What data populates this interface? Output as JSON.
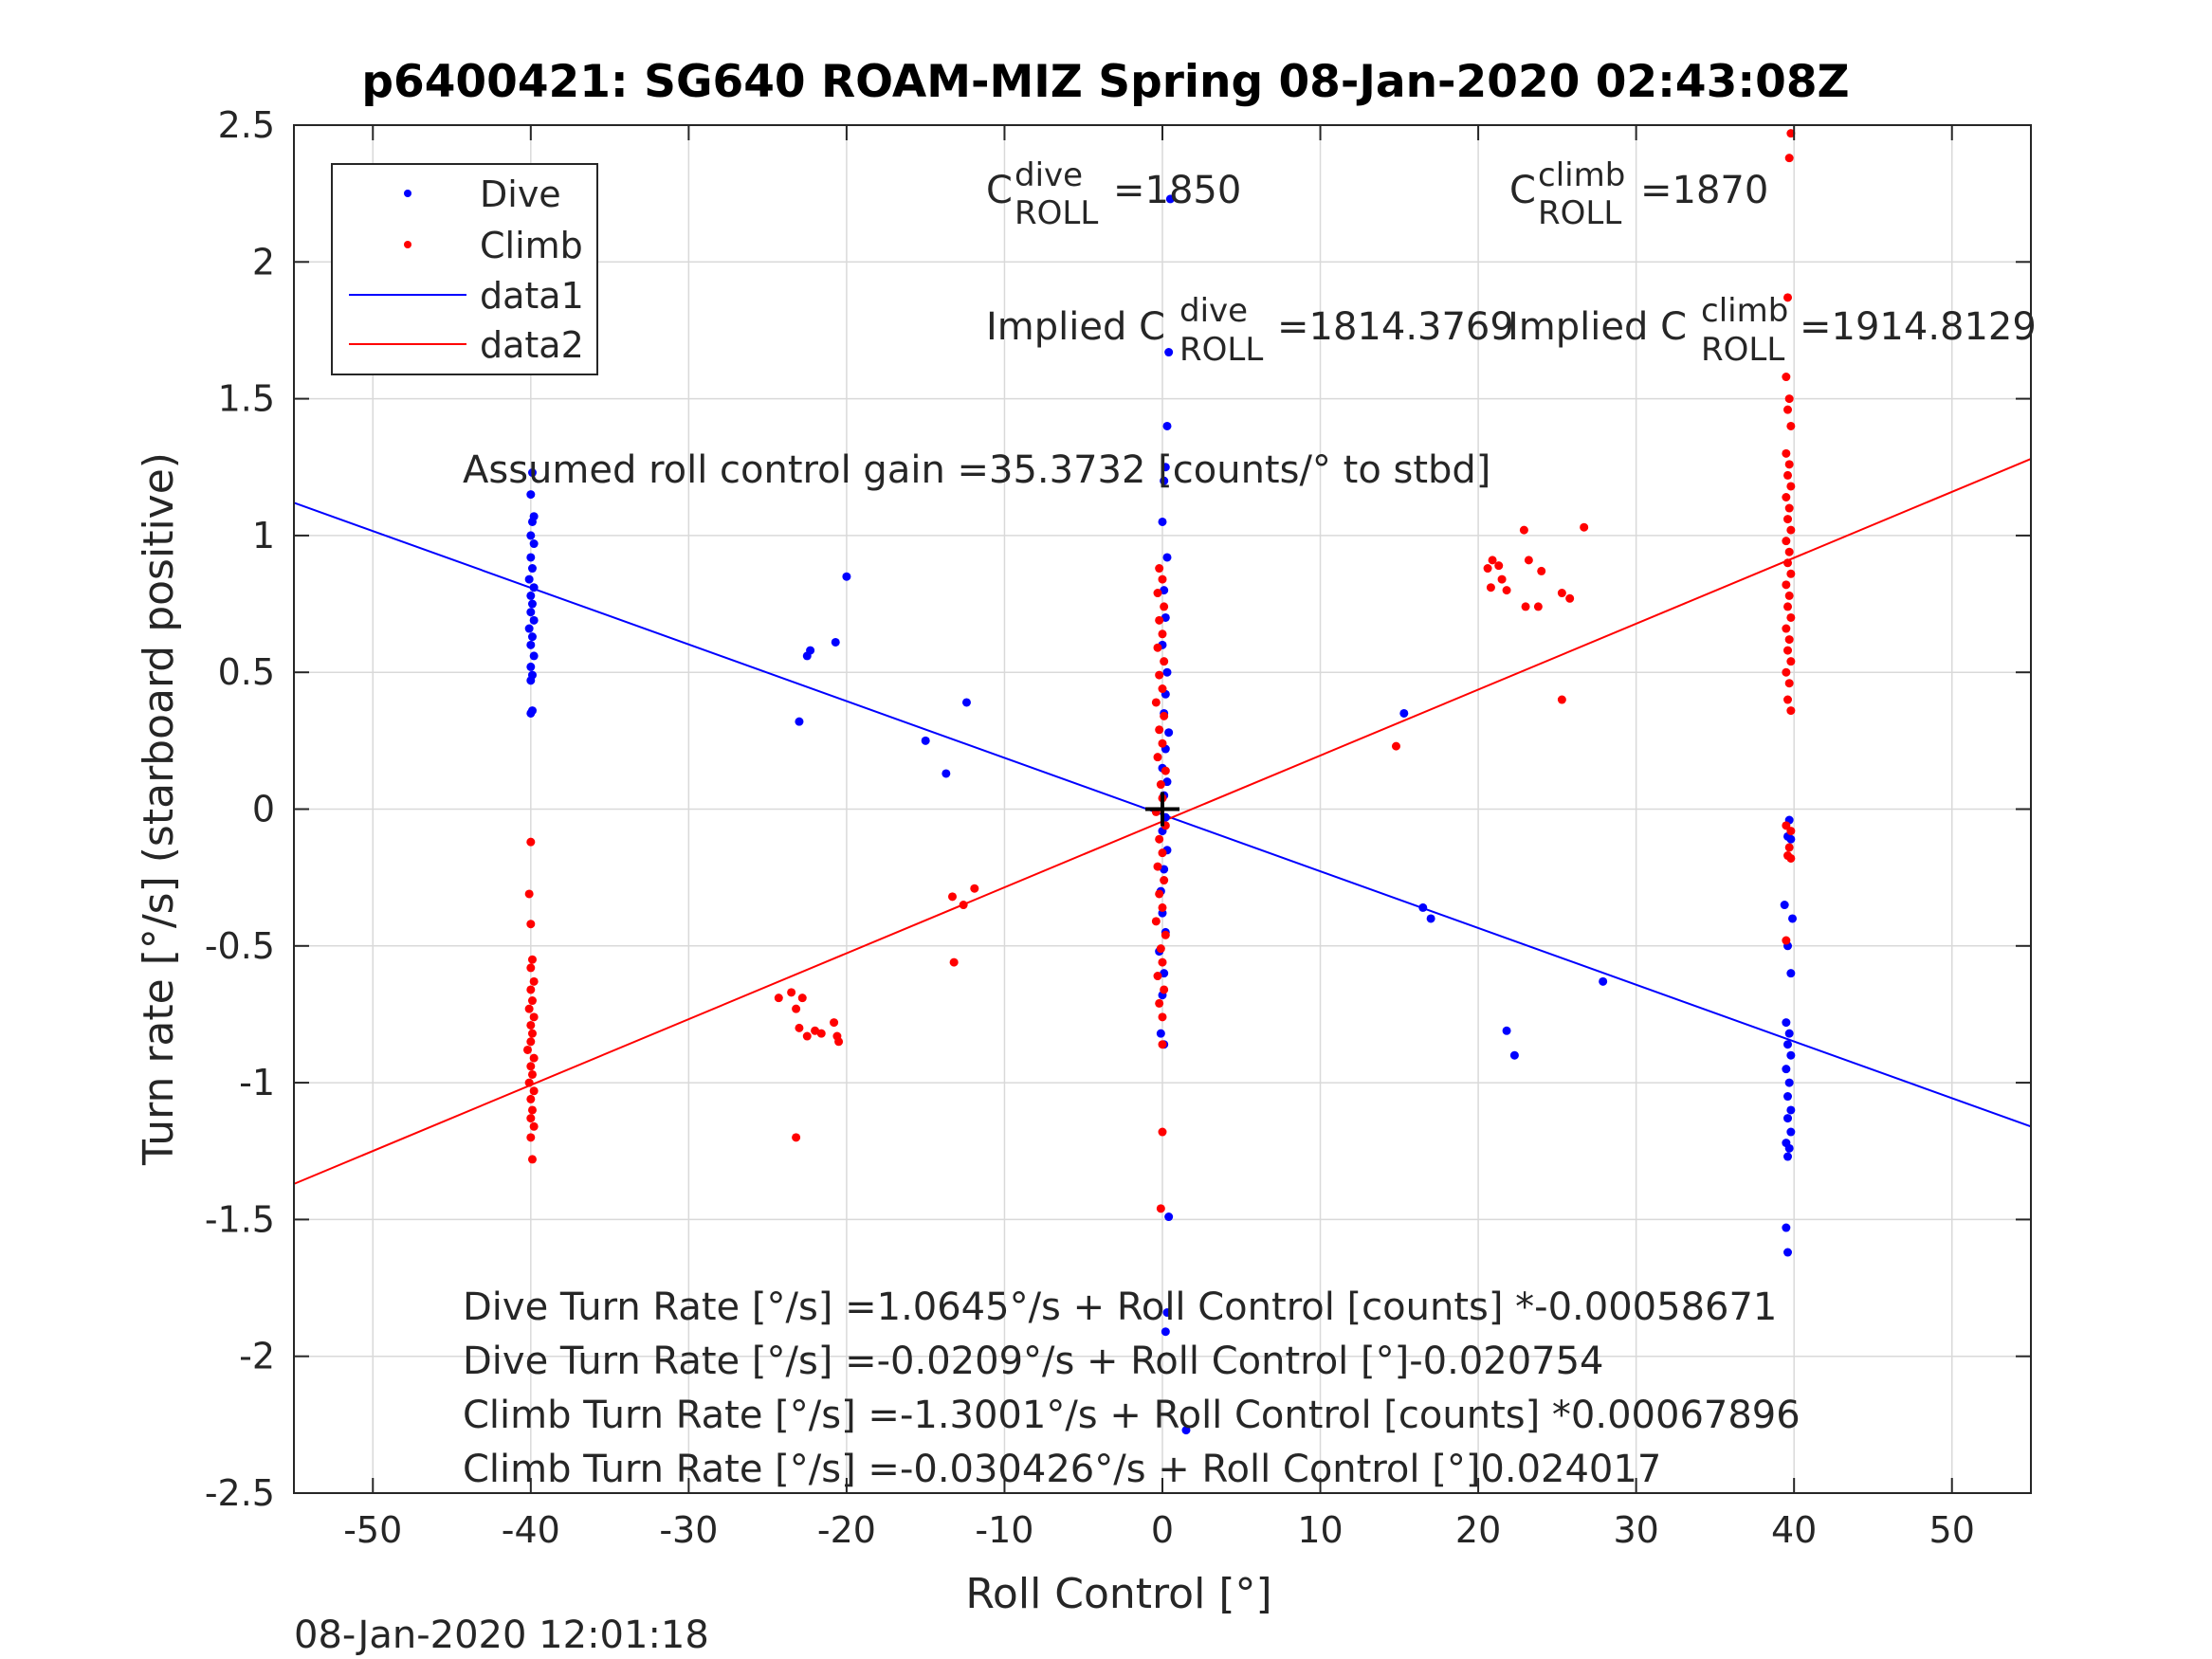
{
  "chart_data": {
    "type": "scatter",
    "title": "p6400421: SG640 ROAM-MIZ Spring 08-Jan-2020 02:43:08Z",
    "xlabel": "Roll Control [°]",
    "ylabel": "Turn rate [°/s] (starboard positive)",
    "xlim": [
      -55,
      55
    ],
    "ylim": [
      -2.5,
      2.5
    ],
    "xticks": [
      -50,
      -40,
      -30,
      -20,
      -10,
      0,
      10,
      20,
      30,
      40,
      50
    ],
    "yticks": [
      -2.5,
      -2,
      -1.5,
      -1,
      -0.5,
      0,
      0.5,
      1,
      1.5,
      2,
      2.5
    ],
    "grid": true,
    "legend_position": "top-left",
    "colors": {
      "dive": "#0000ff",
      "climb": "#ff0000",
      "axes": "#262626"
    },
    "legend": [
      "Dive",
      "Climb",
      "data1",
      "data2"
    ],
    "series": [
      {
        "name": "Dive",
        "kind": "points",
        "color": "#0000ff",
        "points": [
          [
            -39.9,
            1.23
          ],
          [
            -40.0,
            1.15
          ],
          [
            -39.8,
            1.07
          ],
          [
            -39.9,
            1.05
          ],
          [
            -40.0,
            1.0
          ],
          [
            -39.8,
            0.97
          ],
          [
            -40.0,
            0.92
          ],
          [
            -39.9,
            0.88
          ],
          [
            -40.1,
            0.84
          ],
          [
            -39.8,
            0.81
          ],
          [
            -40.0,
            0.78
          ],
          [
            -39.9,
            0.75
          ],
          [
            -40.0,
            0.72
          ],
          [
            -39.8,
            0.69
          ],
          [
            -40.1,
            0.66
          ],
          [
            -39.9,
            0.63
          ],
          [
            -40.0,
            0.6
          ],
          [
            -39.8,
            0.56
          ],
          [
            -40.0,
            0.52
          ],
          [
            -39.9,
            0.49
          ],
          [
            -40.0,
            0.47
          ],
          [
            -39.9,
            0.36
          ],
          [
            -40.0,
            0.35
          ],
          [
            -23.0,
            0.32
          ],
          [
            -22.5,
            0.56
          ],
          [
            -22.3,
            0.58
          ],
          [
            -20.7,
            0.61
          ],
          [
            -20.0,
            0.85
          ],
          [
            -15.0,
            0.25
          ],
          [
            -13.7,
            0.13
          ],
          [
            -12.4,
            0.39
          ],
          [
            0.5,
            2.23
          ],
          [
            0.4,
            1.67
          ],
          [
            0.3,
            1.4
          ],
          [
            0.2,
            1.25
          ],
          [
            0.1,
            1.2
          ],
          [
            0.0,
            1.05
          ],
          [
            0.3,
            0.92
          ],
          [
            0.1,
            0.8
          ],
          [
            0.2,
            0.7
          ],
          [
            0.0,
            0.6
          ],
          [
            0.3,
            0.5
          ],
          [
            0.2,
            0.42
          ],
          [
            0.1,
            0.35
          ],
          [
            0.4,
            0.28
          ],
          [
            0.2,
            0.22
          ],
          [
            0.0,
            0.15
          ],
          [
            0.3,
            0.1
          ],
          [
            0.1,
            0.05
          ],
          [
            0.2,
            -0.03
          ],
          [
            0.0,
            -0.08
          ],
          [
            0.3,
            -0.15
          ],
          [
            0.1,
            -0.22
          ],
          [
            -0.1,
            -0.3
          ],
          [
            0.0,
            -0.38
          ],
          [
            0.2,
            -0.45
          ],
          [
            -0.2,
            -0.52
          ],
          [
            0.1,
            -0.6
          ],
          [
            0.0,
            -0.68
          ],
          [
            -0.1,
            -0.82
          ],
          [
            0.1,
            -0.86
          ],
          [
            0.4,
            -1.49
          ],
          [
            0.3,
            -1.84
          ],
          [
            0.2,
            -1.91
          ],
          [
            1.5,
            -2.27
          ],
          [
            15.3,
            0.35
          ],
          [
            16.5,
            -0.36
          ],
          [
            17.0,
            -0.4
          ],
          [
            21.8,
            -0.81
          ],
          [
            22.3,
            -0.9
          ],
          [
            27.9,
            -0.63
          ],
          [
            39.7,
            -0.04
          ],
          [
            39.6,
            -0.1
          ],
          [
            39.8,
            -0.11
          ],
          [
            39.4,
            -0.35
          ],
          [
            39.9,
            -0.4
          ],
          [
            39.6,
            -0.5
          ],
          [
            39.8,
            -0.6
          ],
          [
            39.5,
            -0.78
          ],
          [
            39.7,
            -0.82
          ],
          [
            39.6,
            -0.86
          ],
          [
            39.8,
            -0.9
          ],
          [
            39.5,
            -0.95
          ],
          [
            39.7,
            -1.0
          ],
          [
            39.6,
            -1.05
          ],
          [
            39.8,
            -1.1
          ],
          [
            39.6,
            -1.13
          ],
          [
            39.8,
            -1.18
          ],
          [
            39.5,
            -1.22
          ],
          [
            39.7,
            -1.24
          ],
          [
            39.6,
            -1.27
          ],
          [
            39.5,
            -1.53
          ],
          [
            39.6,
            -1.62
          ]
        ]
      },
      {
        "name": "Climb",
        "kind": "points",
        "color": "#ff0000",
        "points": [
          [
            -40.0,
            -0.12
          ],
          [
            -40.1,
            -0.31
          ],
          [
            -40.0,
            -0.42
          ],
          [
            -39.9,
            -0.55
          ],
          [
            -40.0,
            -0.58
          ],
          [
            -39.8,
            -0.63
          ],
          [
            -40.0,
            -0.66
          ],
          [
            -39.9,
            -0.7
          ],
          [
            -40.1,
            -0.73
          ],
          [
            -39.8,
            -0.76
          ],
          [
            -40.0,
            -0.79
          ],
          [
            -39.9,
            -0.82
          ],
          [
            -40.0,
            -0.85
          ],
          [
            -40.2,
            -0.88
          ],
          [
            -39.8,
            -0.91
          ],
          [
            -40.0,
            -0.94
          ],
          [
            -39.9,
            -0.97
          ],
          [
            -40.1,
            -1.0
          ],
          [
            -39.8,
            -1.03
          ],
          [
            -40.0,
            -1.06
          ],
          [
            -39.9,
            -1.1
          ],
          [
            -40.0,
            -1.13
          ],
          [
            -39.8,
            -1.16
          ],
          [
            -40.0,
            -1.2
          ],
          [
            -39.9,
            -1.28
          ],
          [
            -24.3,
            -0.69
          ],
          [
            -23.5,
            -0.67
          ],
          [
            -23.2,
            -0.73
          ],
          [
            -22.8,
            -0.69
          ],
          [
            -23.0,
            -0.8
          ],
          [
            -22.5,
            -0.83
          ],
          [
            -22.0,
            -0.81
          ],
          [
            -21.6,
            -0.82
          ],
          [
            -20.8,
            -0.78
          ],
          [
            -20.6,
            -0.83
          ],
          [
            -20.5,
            -0.85
          ],
          [
            -23.2,
            -1.2
          ],
          [
            -13.3,
            -0.32
          ],
          [
            -12.6,
            -0.35
          ],
          [
            -11.9,
            -0.29
          ],
          [
            -13.2,
            -0.56
          ],
          [
            -0.2,
            0.88
          ],
          [
            0.0,
            0.84
          ],
          [
            -0.3,
            0.79
          ],
          [
            0.1,
            0.74
          ],
          [
            -0.2,
            0.69
          ],
          [
            0.0,
            0.64
          ],
          [
            -0.3,
            0.59
          ],
          [
            0.1,
            0.54
          ],
          [
            -0.2,
            0.49
          ],
          [
            0.0,
            0.44
          ],
          [
            -0.4,
            0.39
          ],
          [
            0.1,
            0.34
          ],
          [
            -0.2,
            0.29
          ],
          [
            0.0,
            0.24
          ],
          [
            -0.3,
            0.19
          ],
          [
            0.2,
            0.14
          ],
          [
            -0.1,
            0.09
          ],
          [
            0.0,
            0.04
          ],
          [
            -0.4,
            -0.01
          ],
          [
            0.2,
            -0.06
          ],
          [
            -0.2,
            -0.11
          ],
          [
            0.0,
            -0.16
          ],
          [
            -0.3,
            -0.21
          ],
          [
            0.1,
            -0.26
          ],
          [
            -0.2,
            -0.31
          ],
          [
            0.0,
            -0.36
          ],
          [
            -0.4,
            -0.41
          ],
          [
            0.2,
            -0.46
          ],
          [
            -0.1,
            -0.51
          ],
          [
            0.0,
            -0.56
          ],
          [
            -0.3,
            -0.61
          ],
          [
            0.1,
            -0.66
          ],
          [
            -0.2,
            -0.71
          ],
          [
            0.0,
            -0.76
          ],
          [
            0.0,
            -0.86
          ],
          [
            0.0,
            -1.18
          ],
          [
            -0.1,
            -1.46
          ],
          [
            14.8,
            0.23
          ],
          [
            20.6,
            0.88
          ],
          [
            20.9,
            0.91
          ],
          [
            21.3,
            0.89
          ],
          [
            20.8,
            0.81
          ],
          [
            21.5,
            0.84
          ],
          [
            21.8,
            0.8
          ],
          [
            22.9,
            1.02
          ],
          [
            23.2,
            0.91
          ],
          [
            23.0,
            0.74
          ],
          [
            23.8,
            0.74
          ],
          [
            24.0,
            0.87
          ],
          [
            25.3,
            0.79
          ],
          [
            25.8,
            0.77
          ],
          [
            26.7,
            1.03
          ],
          [
            25.3,
            0.4
          ],
          [
            39.8,
            2.47
          ],
          [
            39.7,
            2.38
          ],
          [
            39.6,
            1.87
          ],
          [
            39.5,
            1.58
          ],
          [
            39.7,
            1.5
          ],
          [
            39.6,
            1.46
          ],
          [
            39.8,
            1.4
          ],
          [
            39.5,
            1.3
          ],
          [
            39.7,
            1.26
          ],
          [
            39.6,
            1.22
          ],
          [
            39.8,
            1.18
          ],
          [
            39.5,
            1.14
          ],
          [
            39.7,
            1.1
          ],
          [
            39.6,
            1.06
          ],
          [
            39.8,
            1.02
          ],
          [
            39.5,
            0.98
          ],
          [
            39.7,
            0.94
          ],
          [
            39.6,
            0.9
          ],
          [
            39.8,
            0.86
          ],
          [
            39.5,
            0.82
          ],
          [
            39.7,
            0.78
          ],
          [
            39.6,
            0.74
          ],
          [
            39.8,
            0.7
          ],
          [
            39.5,
            0.66
          ],
          [
            39.7,
            0.62
          ],
          [
            39.6,
            0.58
          ],
          [
            39.8,
            0.54
          ],
          [
            39.5,
            0.5
          ],
          [
            39.7,
            0.46
          ],
          [
            39.6,
            0.4
          ],
          [
            39.8,
            0.36
          ],
          [
            39.5,
            -0.06
          ],
          [
            39.8,
            -0.08
          ],
          [
            39.7,
            -0.14
          ],
          [
            39.6,
            -0.17
          ],
          [
            39.8,
            -0.18
          ],
          [
            39.5,
            -0.48
          ]
        ]
      },
      {
        "name": "data1",
        "kind": "line",
        "color": "#0000ff",
        "x": [
          -55,
          55
        ],
        "y": [
          1.12,
          -1.16
        ]
      },
      {
        "name": "data2",
        "kind": "line",
        "color": "#ff0000",
        "x": [
          -55,
          55
        ],
        "y": [
          -1.37,
          1.28
        ]
      }
    ],
    "center_marker": [
      0,
      0
    ],
    "annotations": {
      "cdive_label": "=1850",
      "cclimb_label": "=1870",
      "implied_dive_label": "=1814.3769",
      "implied_climb_label": "=1914.8129",
      "gain": "Assumed roll control gain =35.3732 [counts/° to stbd]",
      "eq1": "Dive Turn Rate [°/s] =1.0645°/s + Roll Control [counts] *-0.00058671",
      "eq2": "Dive Turn Rate [°/s] =-0.0209°/s + Roll Control [°]-0.020754",
      "eq3": "Climb Turn Rate [°/s] =-1.3001°/s + Roll Control [counts] *0.00067896",
      "eq4": "Climb Turn Rate [°/s] =-0.030426°/s + Roll Control [°]0.024017"
    },
    "timestamp": "08-Jan-2020 12:01:18"
  }
}
